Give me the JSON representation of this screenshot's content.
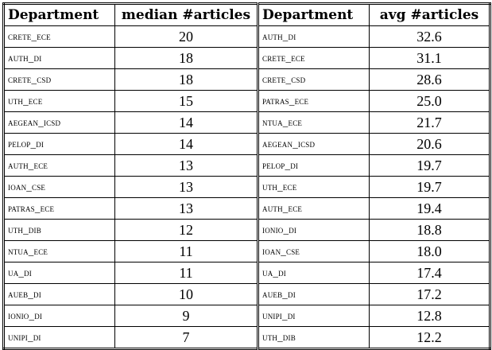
{
  "table": {
    "headers": [
      "Department",
      "median #articles",
      "Department",
      "avg #articles"
    ],
    "rows": [
      {
        "dept_median": "crete_ece",
        "median": "20",
        "dept_avg": "auth_di",
        "avg": "32.6"
      },
      {
        "dept_median": "auth_di",
        "median": "18",
        "dept_avg": "crete_ece",
        "avg": "31.1"
      },
      {
        "dept_median": "crete_csd",
        "median": "18",
        "dept_avg": "crete_csd",
        "avg": "28.6"
      },
      {
        "dept_median": "uth_ece",
        "median": "15",
        "dept_avg": "patras_ece",
        "avg": "25.0"
      },
      {
        "dept_median": "aegean_icsd",
        "median": "14",
        "dept_avg": "ntua_ece",
        "avg": "21.7"
      },
      {
        "dept_median": "pelop_di",
        "median": "14",
        "dept_avg": "aegean_icsd",
        "avg": "20.6"
      },
      {
        "dept_median": "auth_ece",
        "median": "13",
        "dept_avg": "pelop_di",
        "avg": "19.7"
      },
      {
        "dept_median": "ioan_cse",
        "median": "13",
        "dept_avg": "uth_ece",
        "avg": "19.7"
      },
      {
        "dept_median": "patras_ece",
        "median": "13",
        "dept_avg": "auth_ece",
        "avg": "19.4"
      },
      {
        "dept_median": "uth_dib",
        "median": "12",
        "dept_avg": "ionio_di",
        "avg": "18.8"
      },
      {
        "dept_median": "ntua_ece",
        "median": "11",
        "dept_avg": "ioan_cse",
        "avg": "18.0"
      },
      {
        "dept_median": "ua_di",
        "median": "11",
        "dept_avg": "ua_di",
        "avg": "17.4"
      },
      {
        "dept_median": "aueb_di",
        "median": "10",
        "dept_avg": "aueb_di",
        "avg": "17.2"
      },
      {
        "dept_median": "ionio_di",
        "median": "9",
        "dept_avg": "unipi_di",
        "avg": "12.8"
      },
      {
        "dept_median": "unipi_di",
        "median": "7",
        "dept_avg": "uth_dib",
        "avg": "12.2"
      }
    ]
  }
}
